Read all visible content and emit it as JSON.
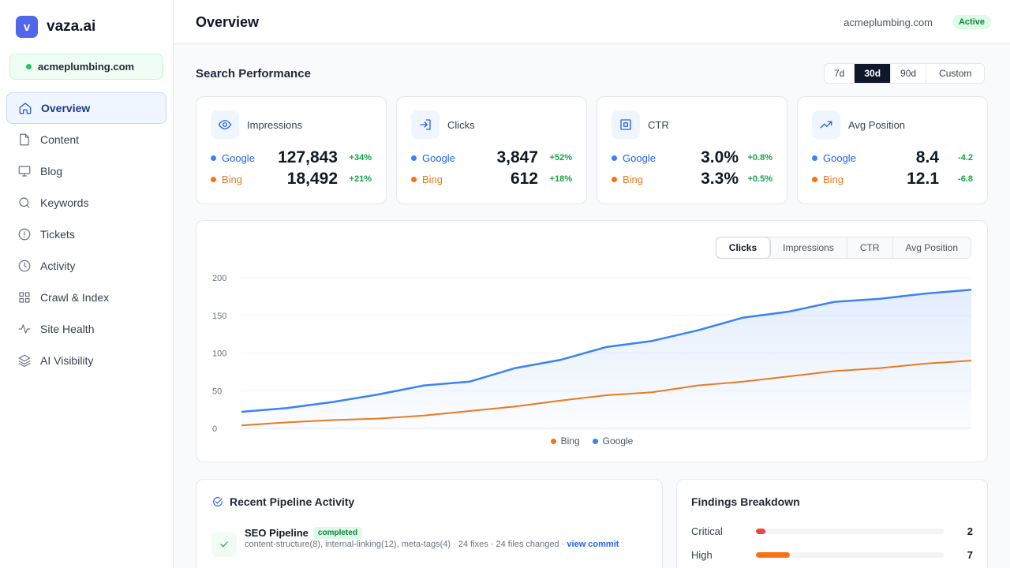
{
  "brand": {
    "logo_letter": "v",
    "name": "vaza.ai"
  },
  "site": {
    "domain": "acmeplumbing.com"
  },
  "nav": [
    {
      "label": "Overview",
      "icon": "home-icon",
      "active": true
    },
    {
      "label": "Content",
      "icon": "file-icon"
    },
    {
      "label": "Blog",
      "icon": "monitor-icon"
    },
    {
      "label": "Keywords",
      "icon": "search-icon"
    },
    {
      "label": "Tickets",
      "icon": "alert-circle-icon"
    },
    {
      "label": "Activity",
      "icon": "clock-icon"
    },
    {
      "label": "Crawl & Index",
      "icon": "grid-icon"
    },
    {
      "label": "Site Health",
      "icon": "pulse-icon"
    },
    {
      "label": "AI Visibility",
      "icon": "layers-icon"
    }
  ],
  "header": {
    "title": "Overview",
    "domain": "acmeplumbing.com",
    "status": "Active"
  },
  "section": {
    "title": "Search Performance",
    "ranges": [
      "7d",
      "30d",
      "90d",
      "Custom"
    ],
    "active_range": "30d"
  },
  "metrics": [
    {
      "label": "Impressions",
      "icon": "eye-icon",
      "google": {
        "name": "Google",
        "value": "127,843",
        "delta": "+34%"
      },
      "bing": {
        "name": "Bing",
        "value": "18,492",
        "delta": "+21%"
      }
    },
    {
      "label": "Clicks",
      "icon": "login-icon",
      "google": {
        "name": "Google",
        "value": "3,847",
        "delta": "+52%"
      },
      "bing": {
        "name": "Bing",
        "value": "612",
        "delta": "+18%"
      }
    },
    {
      "label": "CTR",
      "icon": "target-square-icon",
      "google": {
        "name": "Google",
        "value": "3.0%",
        "delta": "+0.8%"
      },
      "bing": {
        "name": "Bing",
        "value": "3.3%",
        "delta": "+0.5%"
      }
    },
    {
      "label": "Avg Position",
      "icon": "trending-up-icon",
      "google": {
        "name": "Google",
        "value": "8.4",
        "delta": "-4.2"
      },
      "bing": {
        "name": "Bing",
        "value": "12.1",
        "delta": "-6.8"
      }
    }
  ],
  "chart_tabs": [
    "Clicks",
    "Impressions",
    "CTR",
    "Avg Position"
  ],
  "active_chart_tab": "Clicks",
  "colors": {
    "google": "#3b82f6",
    "bing": "#ea7a1f",
    "accent": "#4f67e8"
  },
  "chart_data": {
    "type": "line",
    "x": [
      0,
      1,
      2,
      3,
      4,
      5,
      6,
      7,
      8,
      9,
      10,
      11,
      12,
      13,
      14,
      15,
      16
    ],
    "yticks": [
      0,
      50,
      100,
      150,
      200
    ],
    "ylim": [
      0,
      200
    ],
    "grid": true,
    "legend_position": "bottom-center",
    "series": [
      {
        "name": "Bing",
        "color": "#ea7a1f",
        "values": [
          4,
          8,
          11,
          13,
          17,
          23,
          29,
          37,
          44,
          48,
          57,
          62,
          69,
          76,
          80,
          86,
          90
        ]
      },
      {
        "name": "Google",
        "color": "#3b82f6",
        "values": [
          22,
          27,
          35,
          45,
          57,
          62,
          80,
          91,
          108,
          116,
          130,
          147,
          155,
          168,
          172,
          179,
          184
        ],
        "area": true
      }
    ]
  },
  "pipeline": {
    "title": "Recent Pipeline Activity",
    "items": [
      {
        "name": "SEO Pipeline",
        "status": "completed",
        "detail": "content-structure(8), internal-linking(12), meta-tags(4) · 24 fixes · 24 files changed ·",
        "link": "view commit"
      }
    ]
  },
  "findings": {
    "title": "Findings Breakdown",
    "rows": [
      {
        "label": "Critical",
        "count": "2",
        "fraction": 0.05,
        "color": "#ef4444"
      },
      {
        "label": "High",
        "count": "7",
        "fraction": 0.18,
        "color": "#f97316"
      }
    ]
  }
}
